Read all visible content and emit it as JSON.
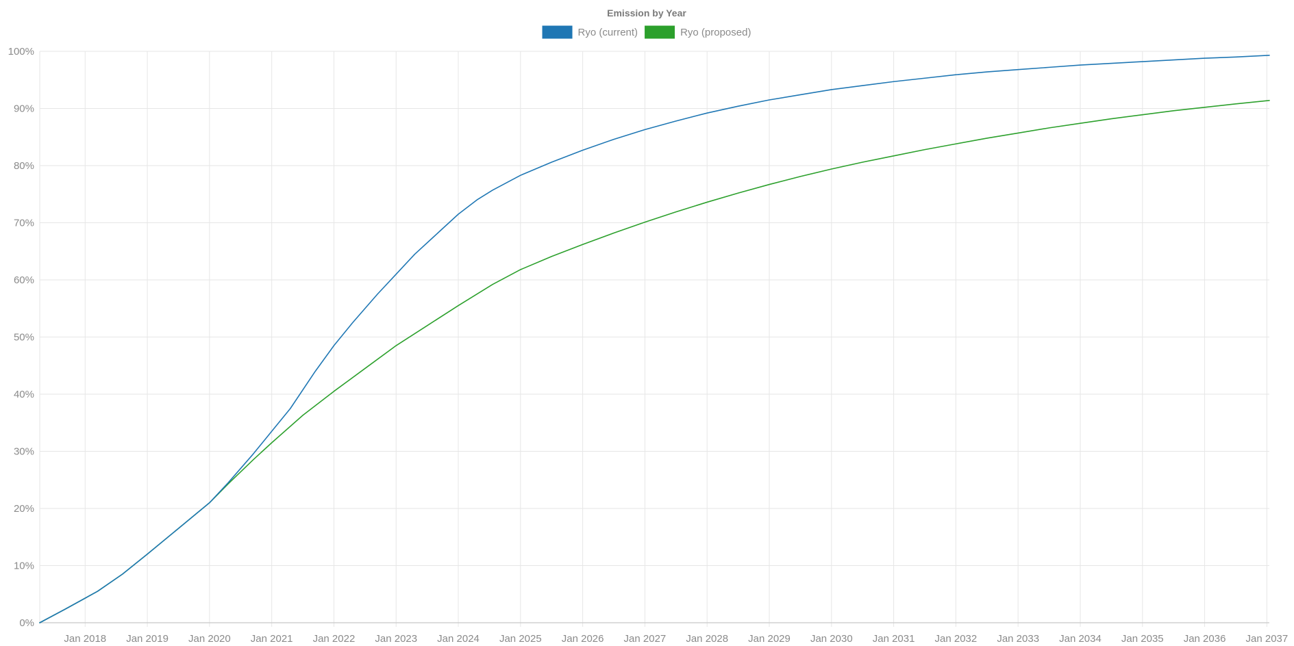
{
  "chart_data": {
    "type": "line",
    "title": "Emission by Year",
    "xlabel": "",
    "ylabel": "",
    "x_unit": "year",
    "xlim": [
      2017.27,
      2037.04
    ],
    "ylim": [
      0,
      100
    ],
    "y_tick_values": [
      0,
      10,
      20,
      30,
      40,
      50,
      60,
      70,
      80,
      90,
      100
    ],
    "y_tick_labels": [
      "0%",
      "10%",
      "20%",
      "30%",
      "40%",
      "50%",
      "60%",
      "70%",
      "80%",
      "90%",
      "100%"
    ],
    "x_tick_values": [
      2018,
      2019,
      2020,
      2021,
      2022,
      2023,
      2024,
      2025,
      2026,
      2027,
      2028,
      2029,
      2030,
      2031,
      2032,
      2033,
      2034,
      2035,
      2036,
      2037
    ],
    "x_tick_labels": [
      "Jan 2018",
      "Jan 2019",
      "Jan 2020",
      "Jan 2021",
      "Jan 2022",
      "Jan 2023",
      "Jan 2024",
      "Jan 2025",
      "Jan 2026",
      "Jan 2027",
      "Jan 2028",
      "Jan 2029",
      "Jan 2030",
      "Jan 2031",
      "Jan 2032",
      "Jan 2033",
      "Jan 2034",
      "Jan 2035",
      "Jan 2036",
      "Jan 2037"
    ],
    "grid": true,
    "legend_position": "top-center",
    "series": [
      {
        "name": "Ryo (current)",
        "color": "#1f77b4",
        "x": [
          2017.27,
          2017.7,
          2018.2,
          2018.6,
          2019.0,
          2019.5,
          2020.0,
          2020.3,
          2020.7,
          2021.0,
          2021.3,
          2021.7,
          2022.0,
          2022.3,
          2022.7,
          2023.0,
          2023.3,
          2023.7,
          2024.0,
          2024.3,
          2024.55,
          2025.0,
          2025.5,
          2026.0,
          2026.5,
          2027.0,
          2027.5,
          2028.0,
          2028.5,
          2029.0,
          2029.5,
          2030.0,
          2030.5,
          2031.0,
          2031.5,
          2032.0,
          2032.5,
          2033.0,
          2033.5,
          2034.0,
          2034.5,
          2035.0,
          2035.5,
          2036.0,
          2036.5,
          2037.04
        ],
        "values": [
          0,
          2.5,
          5.5,
          8.5,
          12,
          16.5,
          21,
          24.5,
          29.5,
          33.5,
          37.5,
          44,
          48.5,
          52.5,
          57.5,
          61,
          64.5,
          68.5,
          71.5,
          74,
          75.7,
          78.3,
          80.6,
          82.7,
          84.6,
          86.3,
          87.8,
          89.2,
          90.4,
          91.5,
          92.4,
          93.3,
          94.0,
          94.7,
          95.3,
          95.9,
          96.4,
          96.8,
          97.2,
          97.6,
          97.9,
          98.2,
          98.5,
          98.8,
          99.0,
          99.3
        ]
      },
      {
        "name": "Ryo (proposed)",
        "color": "#2ca02c",
        "x": [
          2017.27,
          2017.7,
          2018.2,
          2018.6,
          2019.0,
          2019.5,
          2020.0,
          2020.3,
          2020.7,
          2021.0,
          2021.5,
          2022.0,
          2022.5,
          2023.0,
          2023.5,
          2024.0,
          2024.55,
          2025.0,
          2025.5,
          2026.0,
          2026.5,
          2027.0,
          2027.5,
          2028.0,
          2028.5,
          2029.0,
          2029.5,
          2030.0,
          2030.5,
          2031.0,
          2031.5,
          2032.0,
          2032.5,
          2033.0,
          2033.5,
          2034.0,
          2034.5,
          2035.0,
          2035.5,
          2036.0,
          2036.5,
          2037.04
        ],
        "values": [
          0,
          2.5,
          5.5,
          8.5,
          12,
          16.5,
          21,
          24.3,
          28.5,
          31.5,
          36.3,
          40.5,
          44.5,
          48.5,
          52,
          55.5,
          59.2,
          61.8,
          64.1,
          66.2,
          68.2,
          70.1,
          71.9,
          73.6,
          75.2,
          76.7,
          78.1,
          79.4,
          80.6,
          81.7,
          82.8,
          83.8,
          84.8,
          85.7,
          86.6,
          87.4,
          88.2,
          88.9,
          89.6,
          90.2,
          90.8,
          91.4
        ]
      }
    ]
  }
}
